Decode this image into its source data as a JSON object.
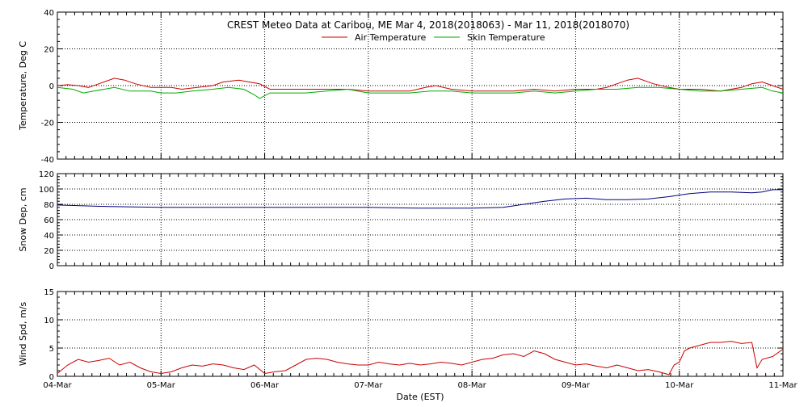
{
  "title": "CREST Meteo Data at Caribou, ME   Mar  4, 2018(2018063) - Mar 11, 2018(2018070)",
  "xlabel": "Date (EST)",
  "colors": {
    "air": "#cc0000",
    "skin": "#00aa00",
    "snow": "#000080",
    "wind": "#cc0000",
    "grid": "#000000"
  },
  "chart_data": [
    {
      "type": "line",
      "ylabel": "Temperature, Deg C",
      "ylim": [
        -40,
        40
      ],
      "yticks": [
        "40",
        "20",
        "0",
        "-20",
        "-40"
      ],
      "ytick_values": [
        40,
        20,
        0,
        -20,
        -40
      ],
      "xlim": [
        0,
        7
      ],
      "xtick_values": [
        0,
        1,
        2,
        3,
        4,
        5,
        6,
        7
      ],
      "grid": true,
      "legend_placement": "top-center",
      "series": [
        {
          "name": "Air Temperature",
          "x": [
            0,
            0.1,
            0.2,
            0.3,
            0.45,
            0.55,
            0.65,
            0.75,
            0.9,
            1.0,
            1.1,
            1.2,
            1.35,
            1.5,
            1.6,
            1.75,
            1.85,
            1.95,
            2.05,
            2.2,
            2.4,
            2.6,
            2.8,
            3.0,
            3.2,
            3.4,
            3.55,
            3.65,
            3.8,
            4.0,
            4.2,
            4.4,
            4.6,
            4.8,
            5.0,
            5.2,
            5.3,
            5.4,
            5.5,
            5.6,
            5.75,
            5.9,
            6.0,
            6.2,
            6.4,
            6.6,
            6.7,
            6.8,
            6.9,
            7.0
          ],
          "y": [
            0,
            0.5,
            0,
            -1,
            2,
            4,
            3,
            1,
            -1,
            -1,
            -1,
            -2,
            -1,
            0,
            2,
            3,
            2,
            1,
            -2,
            -2,
            -2,
            -2,
            -2,
            -3,
            -3,
            -3,
            -1,
            0,
            -2,
            -3,
            -3,
            -3,
            -2,
            -3,
            -2,
            -2,
            -1,
            1,
            3,
            4,
            1,
            -1,
            -2,
            -2,
            -3,
            -1,
            1,
            2,
            0,
            -2
          ]
        },
        {
          "name": "Skin Temperature",
          "x": [
            0,
            0.15,
            0.25,
            0.35,
            0.55,
            0.7,
            0.9,
            1.0,
            1.15,
            1.3,
            1.5,
            1.65,
            1.8,
            1.9,
            1.95,
            2.05,
            2.2,
            2.4,
            2.6,
            2.8,
            3.0,
            3.2,
            3.4,
            3.6,
            3.8,
            4.0,
            4.2,
            4.4,
            4.6,
            4.8,
            5.0,
            5.2,
            5.4,
            5.6,
            5.8,
            6.0,
            6.2,
            6.4,
            6.6,
            6.8,
            6.9,
            7.0
          ],
          "y": [
            -1,
            -2,
            -4,
            -3,
            -1,
            -3,
            -3,
            -4,
            -4,
            -3,
            -2,
            -1,
            -2,
            -5,
            -7,
            -4,
            -4,
            -4,
            -3,
            -2,
            -4,
            -4,
            -4,
            -3,
            -3,
            -4,
            -4,
            -4,
            -3,
            -4,
            -3,
            -2,
            -2,
            -1,
            -1,
            -2,
            -3,
            -3,
            -2,
            -1,
            -3,
            -4
          ]
        }
      ]
    },
    {
      "type": "line",
      "ylabel": "Snow Dep, cm",
      "ylim": [
        0,
        120
      ],
      "yticks": [
        "120",
        "100",
        "80",
        "60",
        "40",
        "20",
        "0"
      ],
      "ytick_values": [
        120,
        100,
        80,
        60,
        40,
        20,
        0
      ],
      "xlim": [
        0,
        7
      ],
      "xtick_values": [
        0,
        1,
        2,
        3,
        4,
        5,
        6,
        7
      ],
      "grid": true,
      "series": [
        {
          "x": [
            0,
            0.5,
            1.0,
            1.5,
            2.0,
            2.5,
            3.0,
            3.5,
            4.0,
            4.3,
            4.5,
            4.7,
            4.9,
            5.1,
            5.3,
            5.5,
            5.7,
            5.9,
            6.1,
            6.3,
            6.5,
            6.7,
            6.8,
            6.9,
            7.0
          ],
          "y": [
            79,
            77,
            76,
            76,
            76,
            76,
            76,
            75,
            75,
            76,
            80,
            84,
            87,
            88,
            86,
            86,
            87,
            90,
            94,
            96,
            96,
            95,
            96,
            99,
            99
          ]
        }
      ]
    },
    {
      "type": "line",
      "ylabel": "Wind Spd, m/s",
      "ylim": [
        0,
        15
      ],
      "yticks": [
        "15",
        "10",
        "5",
        "0"
      ],
      "ytick_values": [
        15,
        10,
        5,
        0
      ],
      "xlim": [
        0,
        7
      ],
      "xtick_values": [
        0,
        1,
        2,
        3,
        4,
        5,
        6,
        7
      ],
      "xtick_labels": [
        "04-Mar",
        "05-Mar",
        "06-Mar",
        "07-Mar",
        "08-Mar",
        "09-Mar",
        "10-Mar",
        "11-Mar"
      ],
      "grid": true,
      "series": [
        {
          "x": [
            0,
            0.1,
            0.2,
            0.3,
            0.4,
            0.5,
            0.6,
            0.7,
            0.8,
            0.9,
            1.0,
            1.1,
            1.2,
            1.3,
            1.4,
            1.5,
            1.6,
            1.7,
            1.8,
            1.9,
            2.0,
            2.1,
            2.2,
            2.3,
            2.4,
            2.5,
            2.6,
            2.7,
            2.8,
            2.9,
            3.0,
            3.1,
            3.2,
            3.3,
            3.4,
            3.5,
            3.6,
            3.7,
            3.8,
            3.9,
            4.0,
            4.1,
            4.2,
            4.3,
            4.4,
            4.5,
            4.6,
            4.7,
            4.8,
            4.9,
            5.0,
            5.1,
            5.2,
            5.3,
            5.4,
            5.5,
            5.6,
            5.7,
            5.8,
            5.9,
            5.95,
            6.0,
            6.05,
            6.1,
            6.2,
            6.3,
            6.4,
            6.5,
            6.6,
            6.7,
            6.75,
            6.8,
            6.9,
            7.0
          ],
          "y": [
            0.5,
            2.0,
            3.0,
            2.5,
            2.8,
            3.2,
            2.0,
            2.5,
            1.5,
            0.8,
            0.5,
            0.8,
            1.5,
            2.0,
            1.8,
            2.2,
            2.0,
            1.5,
            1.2,
            2.0,
            0.5,
            0.8,
            1.0,
            2.0,
            3.0,
            3.2,
            3.0,
            2.5,
            2.2,
            2.0,
            2.0,
            2.5,
            2.2,
            2.0,
            2.3,
            2.0,
            2.2,
            2.5,
            2.3,
            2.0,
            2.5,
            3.0,
            3.2,
            3.8,
            4.0,
            3.5,
            4.5,
            4.0,
            3.0,
            2.5,
            2.0,
            2.2,
            1.8,
            1.5,
            2.0,
            1.5,
            1.0,
            1.2,
            0.8,
            0.3,
            2.0,
            2.5,
            4.5,
            5.0,
            5.5,
            6.0,
            6.0,
            6.2,
            5.8,
            6.0,
            1.5,
            3.0,
            3.5,
            4.8
          ]
        }
      ]
    }
  ]
}
